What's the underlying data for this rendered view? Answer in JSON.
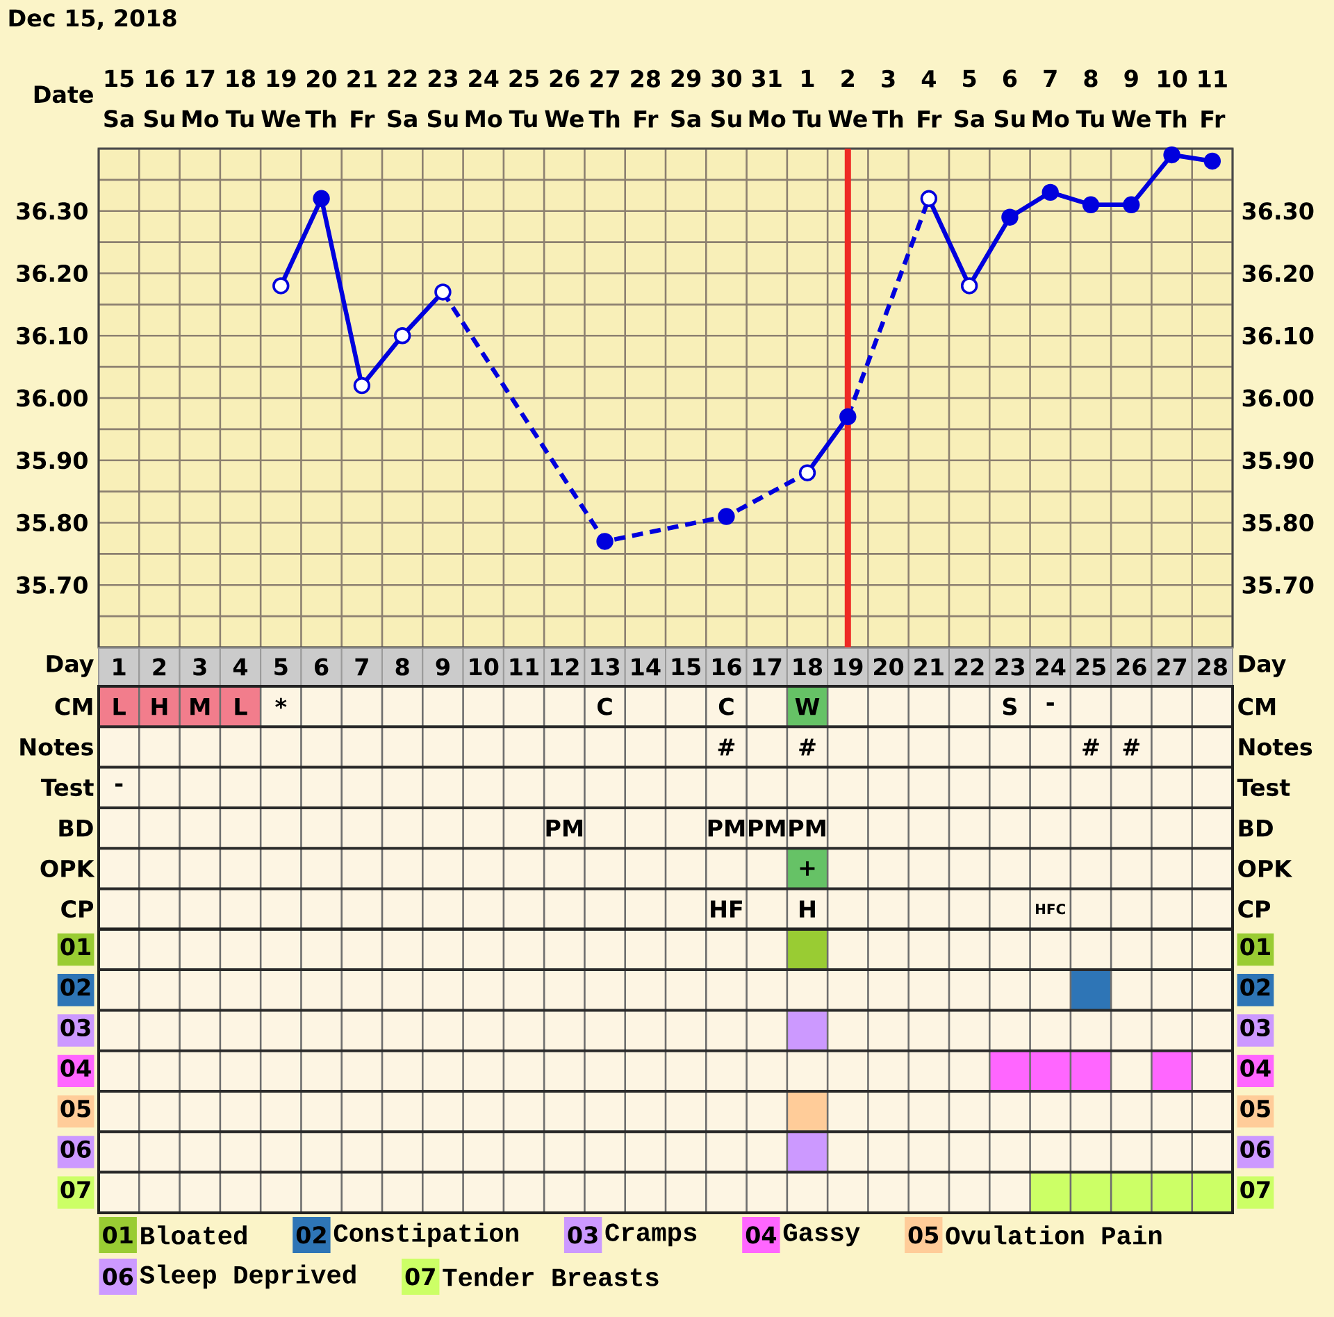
{
  "chart_data": [
    {
      "type": "line",
      "title": "Dec 15, 2018",
      "xlabel": "Day",
      "x2label": "Date",
      "xlim": [
        0.5,
        28.5
      ],
      "xticks": [
        1,
        2,
        3,
        4,
        5,
        6,
        7,
        8,
        9,
        10,
        11,
        12,
        13,
        14,
        15,
        16,
        17,
        18,
        19,
        20,
        21,
        22,
        23,
        24,
        25,
        26,
        27,
        28
      ],
      "x2lim": [
        "2018-12-14T12:00",
        "2019-01-11T12:00"
      ],
      "x2ticks": [
        {
          "value": "2018-12-15",
          "label": "15 Sa"
        },
        {
          "value": "2018-12-16",
          "label": "16 Su"
        },
        {
          "value": "2018-12-17",
          "label": "17 Mo"
        },
        {
          "value": "2018-12-18",
          "label": "18 Tu"
        },
        {
          "value": "2018-12-19",
          "label": "19 We"
        },
        {
          "value": "2018-12-20",
          "label": "20 Th"
        },
        {
          "value": "2018-12-21",
          "label": "21 Fr"
        },
        {
          "value": "2018-12-22",
          "label": "22 Sa"
        },
        {
          "value": "2018-12-23",
          "label": "23 Su"
        },
        {
          "value": "2018-12-24",
          "label": "24 Mo"
        },
        {
          "value": "2018-12-25",
          "label": "25 Tu"
        },
        {
          "value": "2018-12-26",
          "label": "26 We"
        },
        {
          "value": "2018-12-27",
          "label": "27 Th"
        },
        {
          "value": "2018-12-28",
          "label": "28 Fr"
        },
        {
          "value": "2018-12-29",
          "label": "29 Sa"
        },
        {
          "value": "2018-12-30",
          "label": "30 Su"
        },
        {
          "value": "2018-12-31",
          "label": "31 Mo"
        },
        {
          "value": "2019-01-01",
          "label": "1 Tu"
        },
        {
          "value": "2019-01-02",
          "label": "2 We"
        },
        {
          "value": "2019-01-03",
          "label": "3 Th"
        },
        {
          "value": "2019-01-04",
          "label": "4 Fr"
        },
        {
          "value": "2019-01-05",
          "label": "5 Sa"
        },
        {
          "value": "2019-01-06",
          "label": "6 Su"
        },
        {
          "value": "2019-01-07",
          "label": "7 Mo"
        },
        {
          "value": "2019-01-08",
          "label": "8 Tu"
        },
        {
          "value": "2019-01-09",
          "label": "9 We"
        },
        {
          "value": "2019-01-10",
          "label": "10 Th"
        },
        {
          "value": "2019-01-11",
          "label": "11 Fr"
        }
      ],
      "ylim": [
        35.6,
        36.4
      ],
      "yticks": [
        {
          "value": 35.6,
          "label": null
        },
        {
          "value": 35.65,
          "label": null
        },
        {
          "value": 35.7,
          "label": "35.70"
        },
        {
          "value": 35.75,
          "label": null
        },
        {
          "value": 35.8,
          "label": "35.80"
        },
        {
          "value": 35.85,
          "label": null
        },
        {
          "value": 35.9,
          "label": "35.90"
        },
        {
          "value": 35.95,
          "label": null
        },
        {
          "value": 36.0,
          "label": "36.00"
        },
        {
          "value": 36.05,
          "label": null
        },
        {
          "value": 36.1,
          "label": "36.10"
        },
        {
          "value": 36.15,
          "label": null
        },
        {
          "value": 36.2,
          "label": "36.20"
        },
        {
          "value": 36.25,
          "label": null
        },
        {
          "value": 36.3,
          "label": "36.30"
        },
        {
          "value": 36.35,
          "label": null
        },
        {
          "value": 36.4,
          "label": null
        }
      ],
      "y2lim": [
        35.6,
        36.4
      ],
      "y2ticks": [
        {
          "value": 35.6,
          "label": null
        },
        {
          "value": 35.65,
          "label": null
        },
        {
          "value": 35.7,
          "label": "35.70"
        },
        {
          "value": 35.75,
          "label": null
        },
        {
          "value": 35.8,
          "label": "35.80"
        },
        {
          "value": 35.85,
          "label": null
        },
        {
          "value": 35.9,
          "label": "35.90"
        },
        {
          "value": 35.95,
          "label": null
        },
        {
          "value": 36.0,
          "label": "36.00"
        },
        {
          "value": 36.05,
          "label": null
        },
        {
          "value": 36.1,
          "label": "36.10"
        },
        {
          "value": 36.15,
          "label": null
        },
        {
          "value": 36.2,
          "label": "36.20"
        },
        {
          "value": 36.25,
          "label": null
        },
        {
          "value": 36.3,
          "label": "36.30"
        },
        {
          "value": 36.35,
          "label": null
        },
        {
          "value": 36.4,
          "label": null
        }
      ],
      "grid": true,
      "ref_lines": [
        {
          "axis": "x",
          "value": 19,
          "color": "#ee2a24"
        }
      ],
      "series": [
        {
          "type": "line",
          "color": "#0000dd",
          "line_style": "dashed",
          "marker": "none",
          "x": [
            9,
            13,
            16,
            18
          ],
          "values": [
            36.17,
            35.77,
            35.81,
            35.88
          ]
        },
        {
          "type": "line",
          "color": "#0000dd",
          "line_style": "dashed",
          "marker": "none",
          "x": [
            19,
            21
          ],
          "values": [
            35.97,
            36.32
          ]
        },
        {
          "type": "line",
          "color": "#0000dd",
          "line_style": "solid",
          "marker": "none",
          "x": [
            5,
            6,
            7,
            8,
            9,
            10,
            11,
            12,
            13,
            14,
            15,
            16,
            17,
            18,
            19,
            20,
            21,
            22,
            23,
            24,
            25,
            26,
            27,
            28
          ],
          "values": [
            36.18,
            36.32,
            36.02,
            36.1,
            36.17,
            null,
            null,
            null,
            null,
            null,
            null,
            null,
            null,
            35.88,
            35.97,
            null,
            36.32,
            36.18,
            36.29,
            36.33,
            36.31,
            36.31,
            36.39,
            36.38
          ]
        },
        {
          "type": "scatter",
          "color": "#0000dd",
          "marker": "circle",
          "x": [
            6,
            13,
            16,
            19,
            23,
            24,
            25,
            26,
            27,
            28
          ],
          "values": [
            36.32,
            35.77,
            35.81,
            35.97,
            36.29,
            36.33,
            36.31,
            36.31,
            36.39,
            36.38
          ]
        },
        {
          "type": "scatter",
          "color": "#ffffff",
          "marker": "circle",
          "x": [
            5,
            7,
            8,
            9,
            18,
            21,
            22
          ],
          "values": [
            36.18,
            36.02,
            36.1,
            36.17,
            35.88,
            36.32,
            36.18
          ]
        }
      ]
    },
    {
      "type": "heatmap",
      "categories": [
        null,
        null,
        null,
        null,
        null,
        null,
        null,
        null,
        null,
        null,
        null,
        null,
        null,
        null,
        null,
        null,
        null,
        null,
        null,
        null,
        null,
        null,
        null,
        null,
        null,
        null,
        null,
        null
      ],
      "y_categories": [
        "CM",
        "Notes",
        "Test",
        "BD",
        "OPK",
        "CP"
      ],
      "y2_categories": [
        "CM",
        "Notes",
        "Test",
        "BD",
        "OPK",
        "CP"
      ],
      "cells": [
        [
          null,
          null,
          null,
          null,
          null,
          null,
          null,
          null,
          null,
          null,
          null,
          null,
          null,
          null,
          null,
          null,
          null,
          null,
          null,
          null,
          null,
          null,
          null,
          null,
          null,
          null,
          null,
          null
        ],
        [
          null,
          null,
          null,
          null,
          null,
          null,
          null,
          null,
          null,
          null,
          null,
          null,
          null,
          null,
          null,
          null,
          null,
          null,
          null,
          null,
          null,
          null,
          null,
          null,
          null,
          null,
          null,
          null
        ],
        [
          null,
          null,
          null,
          null,
          null,
          null,
          null,
          null,
          null,
          null,
          null,
          null,
          null,
          null,
          null,
          null,
          null,
          null,
          null,
          null,
          null,
          null,
          null,
          null,
          null,
          null,
          null,
          null
        ],
        [
          null,
          null,
          null,
          null,
          null,
          null,
          null,
          null,
          null,
          null,
          null,
          null,
          null,
          null,
          null,
          null,
          null,
          null,
          null,
          null,
          null,
          null,
          null,
          null,
          null,
          null,
          null,
          null
        ],
        [
          null,
          null,
          null,
          null,
          null,
          null,
          null,
          null,
          null,
          null,
          null,
          null,
          null,
          null,
          null,
          null,
          null,
          null,
          null,
          null,
          null,
          null,
          null,
          null,
          null,
          null,
          null,
          null
        ],
        [
          null,
          null,
          null,
          null,
          null,
          null,
          null,
          null,
          null,
          null,
          null,
          null,
          null,
          null,
          null,
          null,
          null,
          null,
          null,
          null,
          null,
          null,
          null,
          null,
          null,
          null,
          null,
          null
        ]
      ],
      "cell_labels": [
        [
          "L",
          "H",
          "M",
          "L",
          "*",
          null,
          null,
          null,
          null,
          null,
          null,
          null,
          "C",
          null,
          null,
          "C",
          null,
          "W",
          null,
          null,
          null,
          null,
          "S",
          "-",
          null,
          null,
          null,
          null
        ],
        [
          null,
          null,
          null,
          null,
          null,
          null,
          null,
          null,
          null,
          null,
          null,
          null,
          null,
          null,
          null,
          "#",
          null,
          "#",
          null,
          null,
          null,
          null,
          null,
          null,
          "#",
          "#",
          null,
          null
        ],
        [
          "-",
          null,
          null,
          null,
          null,
          null,
          null,
          null,
          null,
          null,
          null,
          null,
          null,
          null,
          null,
          null,
          null,
          null,
          null,
          null,
          null,
          null,
          null,
          null,
          null,
          null,
          null,
          null
        ],
        [
          null,
          null,
          null,
          null,
          null,
          null,
          null,
          null,
          null,
          null,
          null,
          "PM",
          null,
          null,
          null,
          "PM",
          "PM",
          "PM",
          null,
          null,
          null,
          null,
          null,
          null,
          null,
          null,
          null,
          null
        ],
        [
          null,
          null,
          null,
          null,
          null,
          null,
          null,
          null,
          null,
          null,
          null,
          null,
          null,
          null,
          null,
          null,
          null,
          "+",
          null,
          null,
          null,
          null,
          null,
          null,
          null,
          null,
          null,
          null
        ],
        [
          null,
          null,
          null,
          null,
          null,
          null,
          null,
          null,
          null,
          null,
          null,
          null,
          null,
          null,
          null,
          "HF",
          null,
          "H",
          null,
          null,
          null,
          null,
          null,
          "HFC",
          null,
          null,
          null,
          null
        ]
      ],
      "colors": [
        [
          "#f27d8c",
          "#f27d8c",
          "#f27d8c",
          "#f27d8c",
          null,
          null,
          null,
          null,
          null,
          null,
          null,
          null,
          null,
          null,
          null,
          null,
          null,
          "#66c266",
          null,
          null,
          null,
          null,
          null,
          null,
          null,
          null,
          null,
          null
        ],
        [
          null,
          null,
          null,
          null,
          null,
          null,
          null,
          null,
          null,
          null,
          null,
          null,
          null,
          null,
          null,
          null,
          null,
          null,
          null,
          null,
          null,
          null,
          null,
          null,
          null,
          null,
          null,
          null
        ],
        [
          null,
          null,
          null,
          null,
          null,
          null,
          null,
          null,
          null,
          null,
          null,
          null,
          null,
          null,
          null,
          null,
          null,
          null,
          null,
          null,
          null,
          null,
          null,
          null,
          null,
          null,
          null,
          null
        ],
        [
          null,
          null,
          null,
          null,
          null,
          null,
          null,
          null,
          null,
          null,
          null,
          null,
          null,
          null,
          null,
          null,
          null,
          null,
          null,
          null,
          null,
          null,
          null,
          null,
          null,
          null,
          null,
          null
        ],
        [
          null,
          null,
          null,
          null,
          null,
          null,
          null,
          null,
          null,
          null,
          null,
          null,
          null,
          null,
          null,
          null,
          null,
          "#66c266",
          null,
          null,
          null,
          null,
          null,
          null,
          null,
          null,
          null,
          null
        ],
        [
          null,
          null,
          null,
          null,
          null,
          null,
          null,
          null,
          null,
          null,
          null,
          null,
          null,
          null,
          null,
          null,
          null,
          null,
          null,
          null,
          null,
          null,
          null,
          null,
          null,
          null,
          null,
          null
        ]
      ],
      "grid": true
    },
    {
      "type": "bar",
      "orientation": "horizontal",
      "categories": [
        "01",
        "02",
        "03",
        "04",
        "05",
        "06",
        "07"
      ],
      "y2_categories": [
        "01",
        "02",
        "03",
        "04",
        "05",
        "06",
        "07"
      ],
      "xlim": [
        0.5,
        28.5
      ],
      "tick_labels": "y",
      "grid": true,
      "legend": "bottom",
      "series": [
        {
          "name": "Bloated",
          "color": "#99cc33",
          "values": [
            1,
            null,
            null,
            null,
            null,
            null,
            null
          ],
          "base": [
            17.5,
            null,
            null,
            null,
            null,
            null,
            null
          ]
        },
        {
          "name": "Constipation",
          "color": "#2e75b6",
          "values": [
            null,
            1,
            null,
            null,
            null,
            null,
            null
          ],
          "base": [
            null,
            24.5,
            null,
            null,
            null,
            null,
            null
          ]
        },
        {
          "name": "Cramps",
          "color": "#cc99ff",
          "values": [
            null,
            null,
            1,
            null,
            null,
            null,
            null
          ],
          "base": [
            null,
            null,
            17.5,
            null,
            null,
            null,
            null
          ]
        },
        {
          "name": "Gassy",
          "color": "#ff66ff",
          "values": [
            null,
            null,
            null,
            3,
            null,
            null,
            null
          ],
          "base": [
            null,
            null,
            null,
            22.5,
            null,
            null,
            null
          ]
        },
        {
          "color": "#ff66ff",
          "values": [
            null,
            null,
            null,
            1,
            null,
            null,
            null
          ],
          "base": [
            null,
            null,
            null,
            26.5,
            null,
            null,
            null
          ]
        },
        {
          "name": "Ovulation Pain",
          "color": "#ffcc99",
          "values": [
            null,
            null,
            null,
            null,
            1,
            null,
            null
          ],
          "base": [
            null,
            null,
            null,
            null,
            17.5,
            null,
            null
          ]
        },
        {
          "name": "Sleep Deprived",
          "color": "#cc99ff",
          "values": [
            null,
            null,
            null,
            null,
            null,
            1,
            null
          ],
          "base": [
            null,
            null,
            null,
            null,
            null,
            17.5,
            null
          ]
        },
        {
          "name": "Tender Breasts",
          "color": "#ccff66",
          "values": [
            null,
            null,
            null,
            null,
            null,
            null,
            5
          ],
          "base": [
            null,
            null,
            null,
            null,
            null,
            null,
            23.5
          ]
        }
      ]
    }
  ]
}
